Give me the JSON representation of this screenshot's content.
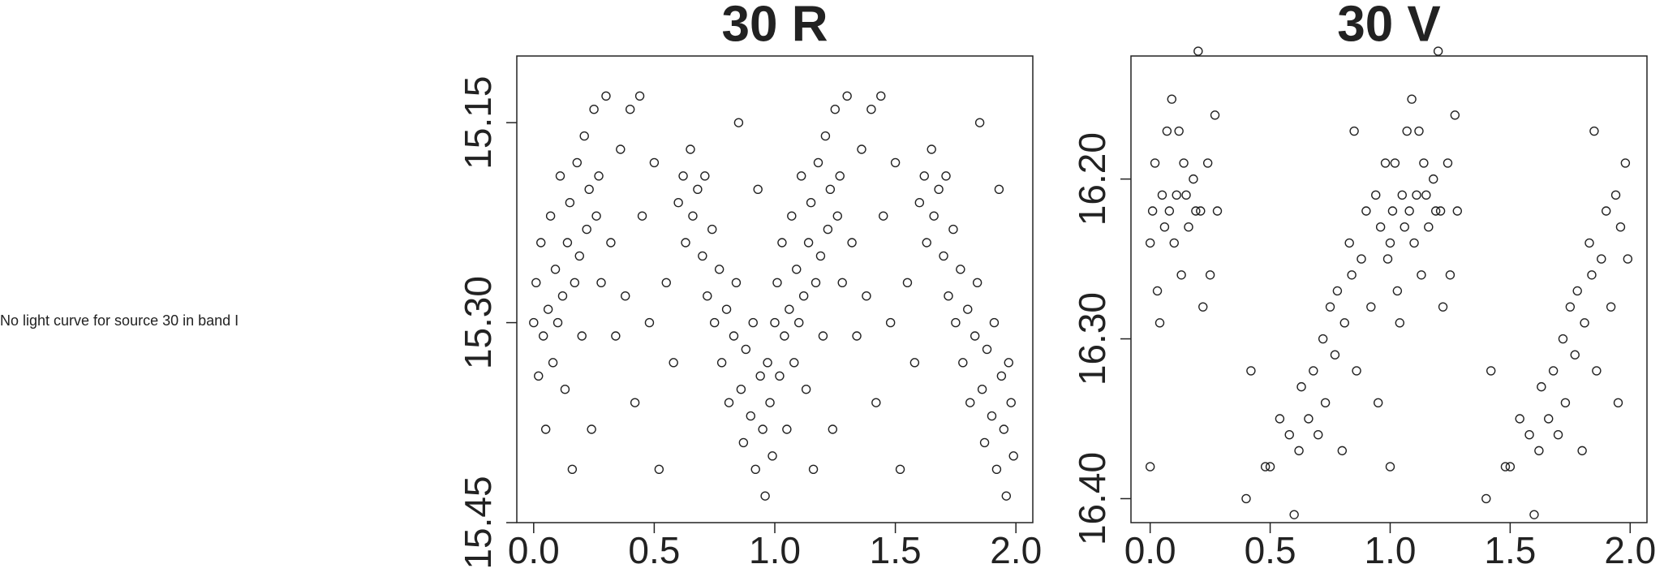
{
  "message": "No light curve for source 30 in band I",
  "chart_data": [
    {
      "type": "scatter",
      "title": "30 R",
      "color": "#222222",
      "x": [
        0,
        0.01,
        0.02,
        0.03,
        0.04,
        0.05,
        0.06,
        0.07,
        0.08,
        0.09,
        0.1,
        0.11,
        0.12,
        0.13,
        0.14,
        0.15,
        0.16,
        0.17,
        0.18,
        0.19,
        0.2,
        0.21,
        0.22,
        0.23,
        0.24,
        0.25,
        0.26,
        0.27,
        0.28,
        0.3,
        0.32,
        0.34,
        0.36,
        0.38,
        0.4,
        0.42,
        0.45,
        0.48,
        0.5,
        0.52,
        0.55,
        0.58,
        0.6,
        0.62,
        0.63,
        0.65,
        0.66,
        0.68,
        0.7,
        0.71,
        0.72,
        0.74,
        0.75,
        0.77,
        0.78,
        0.8,
        0.81,
        0.83,
        0.84,
        0.86,
        0.87,
        0.88,
        0.9,
        0.91,
        0.92,
        0.94,
        0.95,
        0.96,
        0.97,
        0.98,
        0.99,
        0.44,
        0.85,
        0.93,
        1,
        1.01,
        1.02,
        1.03,
        1.04,
        1.05,
        1.06,
        1.07,
        1.08,
        1.09,
        1.1,
        1.11,
        1.12,
        1.13,
        1.14,
        1.15,
        1.16,
        1.17,
        1.18,
        1.19,
        1.2,
        1.21,
        1.22,
        1.23,
        1.24,
        1.25,
        1.26,
        1.27,
        1.28,
        1.3,
        1.32,
        1.34,
        1.36,
        1.38,
        1.4,
        1.42,
        1.45,
        1.48,
        1.5,
        1.52,
        1.55,
        1.58,
        1.6,
        1.62,
        1.63,
        1.65,
        1.66,
        1.68,
        1.7,
        1.71,
        1.72,
        1.74,
        1.75,
        1.77,
        1.78,
        1.8,
        1.81,
        1.83,
        1.84,
        1.86,
        1.87,
        1.88,
        1.9,
        1.91,
        1.92,
        1.94,
        1.95,
        1.96,
        1.97,
        1.98,
        1.99,
        1.44,
        1.85,
        1.93
      ],
      "values": [
        15.3,
        15.27,
        15.34,
        15.24,
        15.31,
        15.38,
        15.29,
        15.22,
        15.33,
        15.26,
        15.3,
        15.19,
        15.28,
        15.35,
        15.24,
        15.21,
        15.41,
        15.27,
        15.18,
        15.25,
        15.31,
        15.16,
        15.23,
        15.2,
        15.38,
        15.14,
        15.22,
        15.19,
        15.27,
        15.13,
        15.24,
        15.31,
        15.17,
        15.28,
        15.14,
        15.36,
        15.22,
        15.3,
        15.18,
        15.41,
        15.27,
        15.33,
        15.21,
        15.19,
        15.24,
        15.17,
        15.22,
        15.2,
        15.25,
        15.19,
        15.28,
        15.23,
        15.3,
        15.26,
        15.33,
        15.29,
        15.36,
        15.31,
        15.27,
        15.35,
        15.39,
        15.32,
        15.37,
        15.3,
        15.41,
        15.34,
        15.38,
        15.43,
        15.33,
        15.36,
        15.4,
        15.13,
        15.15,
        15.2,
        15.3,
        15.27,
        15.34,
        15.24,
        15.31,
        15.38,
        15.29,
        15.22,
        15.33,
        15.26,
        15.3,
        15.19,
        15.28,
        15.35,
        15.24,
        15.21,
        15.41,
        15.27,
        15.18,
        15.25,
        15.31,
        15.16,
        15.23,
        15.2,
        15.38,
        15.14,
        15.22,
        15.19,
        15.27,
        15.13,
        15.24,
        15.31,
        15.17,
        15.28,
        15.14,
        15.36,
        15.22,
        15.3,
        15.18,
        15.41,
        15.27,
        15.33,
        15.21,
        15.19,
        15.24,
        15.17,
        15.22,
        15.2,
        15.25,
        15.19,
        15.28,
        15.23,
        15.3,
        15.26,
        15.33,
        15.29,
        15.36,
        15.31,
        15.27,
        15.35,
        15.39,
        15.32,
        15.37,
        15.3,
        15.41,
        15.34,
        15.38,
        15.43,
        15.33,
        15.36,
        15.4,
        15.13,
        15.15,
        15.2
      ],
      "xlim": [
        -0.07,
        2.07
      ],
      "ylim": [
        15.45,
        15.1
      ],
      "xticks": [
        {
          "value": 0,
          "label": "0.0"
        },
        0.5,
        {
          "value": 1,
          "label": "1.0"
        },
        1.5,
        {
          "value": 2,
          "label": "2.0"
        }
      ],
      "yticks": [
        15.15,
        {
          "value": 15.3,
          "label": "15.30"
        },
        15.45
      ]
    },
    {
      "type": "scatter",
      "title": "30 V",
      "color": "#222222",
      "x": [
        0,
        0,
        0.01,
        0.02,
        0.03,
        0.04,
        0.05,
        0.06,
        0.07,
        0.08,
        0.09,
        0.1,
        0.11,
        0.12,
        0.13,
        0.14,
        0.15,
        0.16,
        0.18,
        0.19,
        0.2,
        0.21,
        0.22,
        0.24,
        0.25,
        0.27,
        0.28,
        0.42,
        0.4,
        0.48,
        0.5,
        0.54,
        0.58,
        0.6,
        0.62,
        0.63,
        0.66,
        0.68,
        0.7,
        0.72,
        0.73,
        0.75,
        0.77,
        0.78,
        0.8,
        0.81,
        0.83,
        0.84,
        0.85,
        0.86,
        0.88,
        0.9,
        0.92,
        0.94,
        0.95,
        0.96,
        0.98,
        0.99,
        1,
        1,
        1.01,
        1.02,
        1.03,
        1.04,
        1.05,
        1.06,
        1.07,
        1.08,
        1.09,
        1.1,
        1.11,
        1.12,
        1.13,
        1.14,
        1.15,
        1.16,
        1.18,
        1.19,
        1.2,
        1.21,
        1.22,
        1.24,
        1.25,
        1.27,
        1.28,
        1.42,
        1.4,
        1.48,
        1.5,
        1.54,
        1.58,
        1.6,
        1.62,
        1.63,
        1.66,
        1.68,
        1.7,
        1.72,
        1.73,
        1.75,
        1.77,
        1.78,
        1.8,
        1.81,
        1.83,
        1.84,
        1.85,
        1.86,
        1.88,
        1.9,
        1.92,
        1.94,
        1.95,
        1.96,
        1.98,
        1.99
      ],
      "values": [
        16.24,
        16.38,
        16.22,
        16.19,
        16.27,
        16.29,
        16.21,
        16.23,
        16.17,
        16.22,
        16.15,
        16.24,
        16.21,
        16.17,
        16.26,
        16.19,
        16.21,
        16.23,
        16.2,
        16.22,
        16.12,
        16.22,
        16.28,
        16.19,
        16.26,
        16.16,
        16.22,
        16.32,
        16.4,
        16.38,
        16.38,
        16.35,
        16.36,
        16.41,
        16.37,
        16.33,
        16.35,
        16.32,
        16.36,
        16.3,
        16.34,
        16.28,
        16.31,
        16.27,
        16.37,
        16.29,
        16.24,
        16.26,
        16.17,
        16.32,
        16.25,
        16.22,
        16.28,
        16.21,
        16.34,
        16.23,
        16.19,
        16.25,
        16.24,
        16.38,
        16.22,
        16.19,
        16.27,
        16.29,
        16.21,
        16.23,
        16.17,
        16.22,
        16.15,
        16.24,
        16.21,
        16.17,
        16.26,
        16.19,
        16.21,
        16.23,
        16.2,
        16.22,
        16.12,
        16.22,
        16.28,
        16.19,
        16.26,
        16.16,
        16.22,
        16.32,
        16.4,
        16.38,
        16.38,
        16.35,
        16.36,
        16.41,
        16.37,
        16.33,
        16.35,
        16.32,
        16.36,
        16.3,
        16.34,
        16.28,
        16.31,
        16.27,
        16.37,
        16.29,
        16.24,
        16.26,
        16.17,
        16.32,
        16.25,
        16.22,
        16.28,
        16.21,
        16.34,
        16.23,
        16.19,
        16.25
      ],
      "xlim": [
        -0.08,
        2.07
      ],
      "ylim": [
        16.415,
        16.123
      ],
      "xticks": [
        {
          "value": 0,
          "label": "0.0"
        },
        0.5,
        {
          "value": 1,
          "label": "1.0"
        },
        1.5,
        {
          "value": 2,
          "label": "2.0"
        }
      ],
      "yticks": [
        {
          "value": 16.2,
          "label": "16.20"
        },
        {
          "value": 16.3,
          "label": "16.30"
        },
        {
          "value": 16.4,
          "label": "16.40"
        }
      ]
    }
  ]
}
